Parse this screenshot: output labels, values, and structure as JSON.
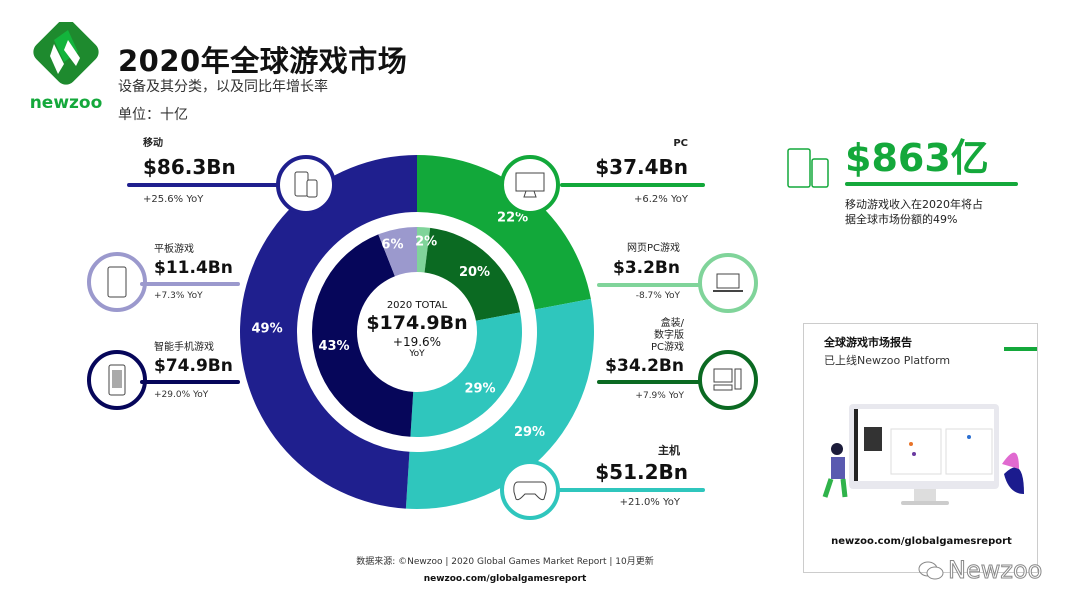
{
  "brand": {
    "name": "newzoo",
    "color": "#14a83b"
  },
  "header": {
    "title": "2020年全球游戏市场",
    "subtitle": "设备及其分类，以及同比年增长率",
    "unit": "单位：十亿"
  },
  "segments": {
    "mobile": {
      "label": "移动",
      "value": "$86.3Bn",
      "yoy": "+25.6% YoY",
      "icon": "phones-icon"
    },
    "tablet": {
      "label": "平板游戏",
      "value": "$11.4Bn",
      "yoy": "+7.3% YoY",
      "icon": "tablet-icon"
    },
    "smartphone": {
      "label": "智能手机游戏",
      "value": "$74.9Bn",
      "yoy": "+29.0% YoY",
      "icon": "smartphone-icon"
    },
    "pc": {
      "label": "PC",
      "value": "$37.4Bn",
      "yoy": "+6.2% YoY",
      "icon": "monitor-icon"
    },
    "browser_pc": {
      "label": "网页PC游戏",
      "value": "$3.2Bn",
      "yoy": "-8.7% YoY",
      "icon": "laptop-icon"
    },
    "boxed_pc": {
      "label": "盒装/\n数字版\nPC游戏",
      "value": "$34.2Bn",
      "yoy": "+7.9% YoY",
      "icon": "desktop-computer-icon"
    },
    "console": {
      "label": "主机",
      "value": "$51.2Bn",
      "yoy": "+21.0% YoY",
      "icon": "gamepad-icon"
    }
  },
  "center": {
    "label": "2020 TOTAL",
    "value": "$174.9Bn",
    "growth": "+19.6%",
    "yoy": "YoY"
  },
  "chart_data": {
    "type": "pie",
    "rings": [
      {
        "ring": "outer",
        "slices": [
          {
            "name": "PC",
            "percent": 22,
            "color": "#12a83a"
          },
          {
            "name": "主机",
            "percent": 29,
            "color": "#2fc6bd"
          },
          {
            "name": "移动",
            "percent": 49,
            "color": "#1f1f8e"
          }
        ]
      },
      {
        "ring": "inner",
        "slices": [
          {
            "name": "网页PC游戏",
            "percent": 2,
            "color": "#80d49a"
          },
          {
            "name": "盒装/数字版PC游戏",
            "percent": 20,
            "color": "#0b6a22"
          },
          {
            "name": "主机",
            "percent": 29,
            "color": "#2fc6bd"
          },
          {
            "name": "智能手机游戏",
            "percent": 43,
            "color": "#06065a"
          },
          {
            "name": "平板游戏",
            "percent": 6,
            "color": "#9b99cd"
          }
        ]
      }
    ]
  },
  "highlight": {
    "value": "$863亿",
    "text1": "移动游戏收入在2020年将占",
    "text2": "据全球市场份额的49%"
  },
  "report": {
    "title": "全球游戏市场报告",
    "subtitle": "已上线Newzoo Platform",
    "url": "newzoo.com/globalgamesreport"
  },
  "footer": {
    "source": "数据来源: ©Newzoo | 2020 Global Games Market Report | 10月更新",
    "url": "newzoo.com/globalgamesreport"
  },
  "watermark": "Newzoo"
}
